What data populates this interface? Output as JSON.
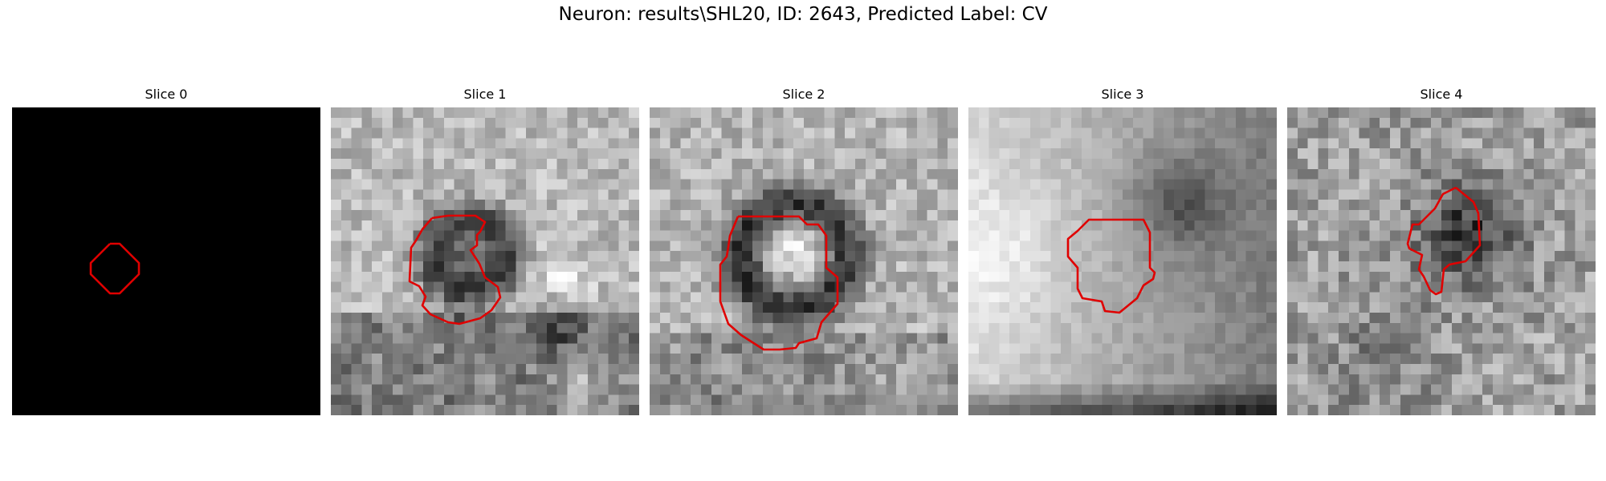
{
  "figure": {
    "title": "Neuron: results\\SHL20, ID: 2643, Predicted Label: CV",
    "contour_color": "#e00000",
    "colormap": "gray"
  },
  "slices": [
    {
      "title": "Slice 0",
      "content": "blank black image with small diamond-shaped ROI contour"
    },
    {
      "title": "Slice 1",
      "content": "grayscale noisy patch with dark ring, ROI contour"
    },
    {
      "title": "Slice 2",
      "content": "grayscale patch with dark ring around bright center, ROI contour"
    },
    {
      "title": "Slice 3",
      "content": "bright left region, darker right region, ROI contour"
    },
    {
      "title": "Slice 4",
      "content": "noisy grayscale patch with dark blob, ROI contour"
    }
  ]
}
